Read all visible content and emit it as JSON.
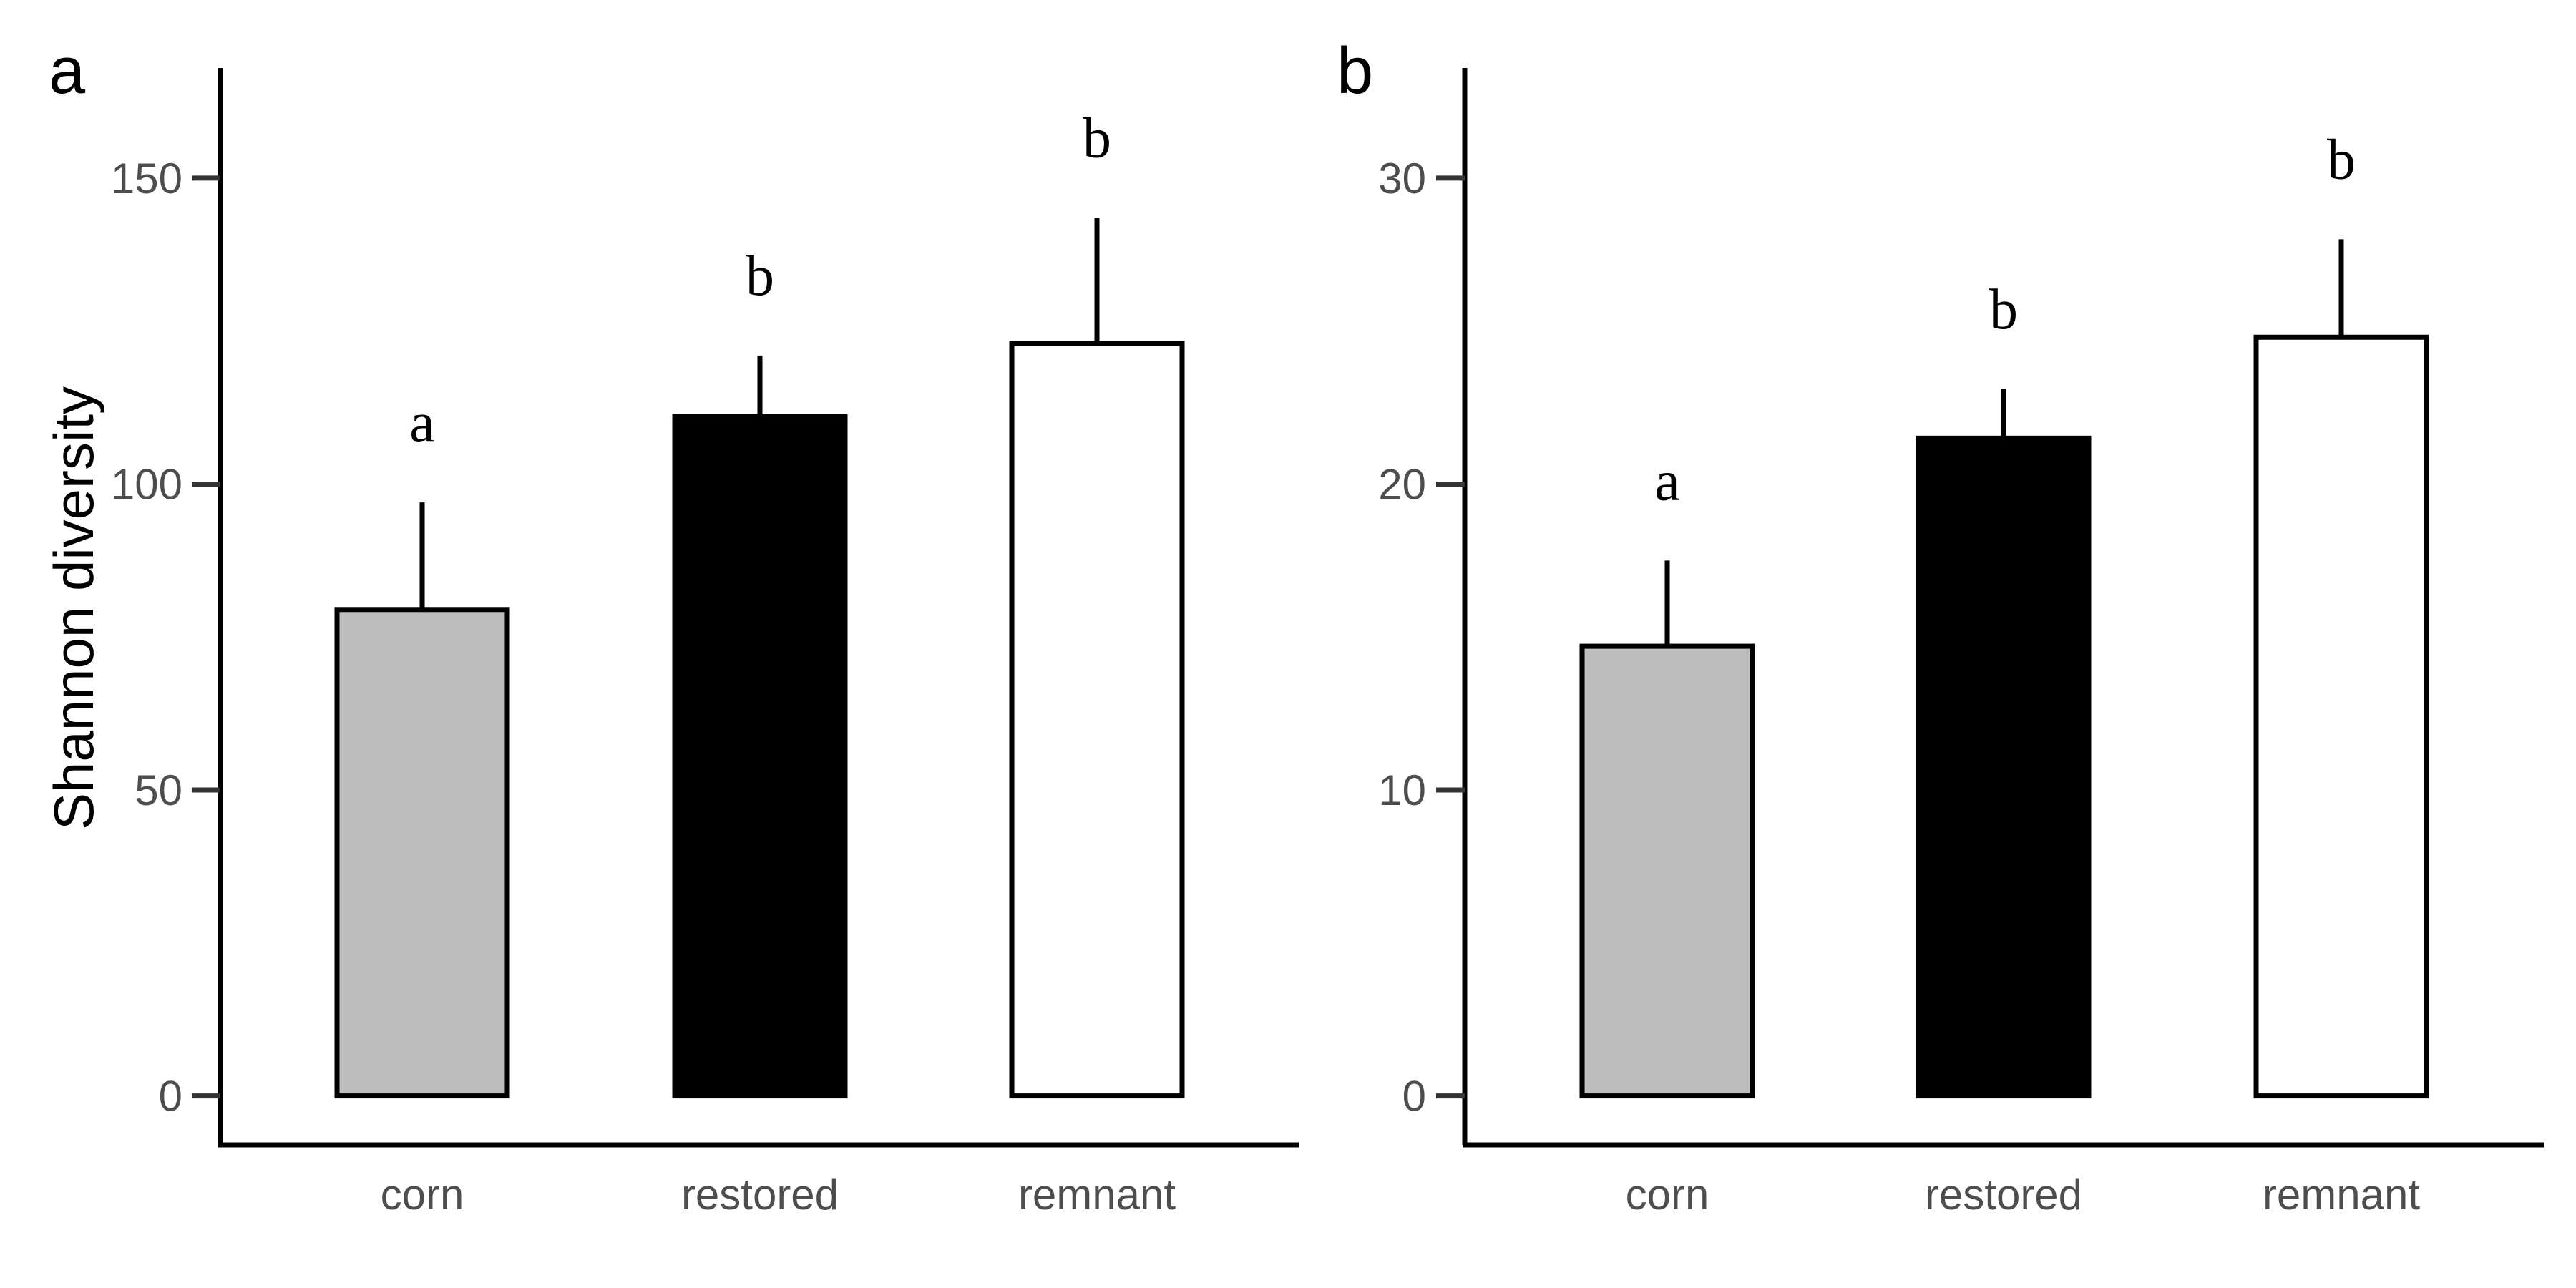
{
  "chart_data": [
    {
      "type": "bar",
      "panel": "a",
      "ylabel": "Shannon diversity",
      "categories": [
        "corn",
        "restored",
        "remnant"
      ],
      "values": [
        79.5,
        111,
        123
      ],
      "errors": [
        17.5,
        10,
        20.5
      ],
      "significance": [
        "a",
        "b",
        "b"
      ],
      "colors": [
        "#bebebe",
        "#000000",
        "#ffffff"
      ],
      "yticks": [
        0,
        50,
        100,
        150
      ],
      "ylim": [
        -8,
        168
      ],
      "grid": false
    },
    {
      "type": "bar",
      "panel": "b",
      "ylabel": "",
      "categories": [
        "corn",
        "restored",
        "remnant"
      ],
      "values": [
        14.7,
        21.5,
        24.8
      ],
      "errors": [
        2.8,
        1.6,
        3.2
      ],
      "significance": [
        "a",
        "b",
        "b"
      ],
      "colors": [
        "#bebebe",
        "#000000",
        "#ffffff"
      ],
      "yticks": [
        0,
        10,
        20,
        30
      ],
      "ylim": [
        -1.6,
        33.6
      ],
      "grid": false
    }
  ]
}
